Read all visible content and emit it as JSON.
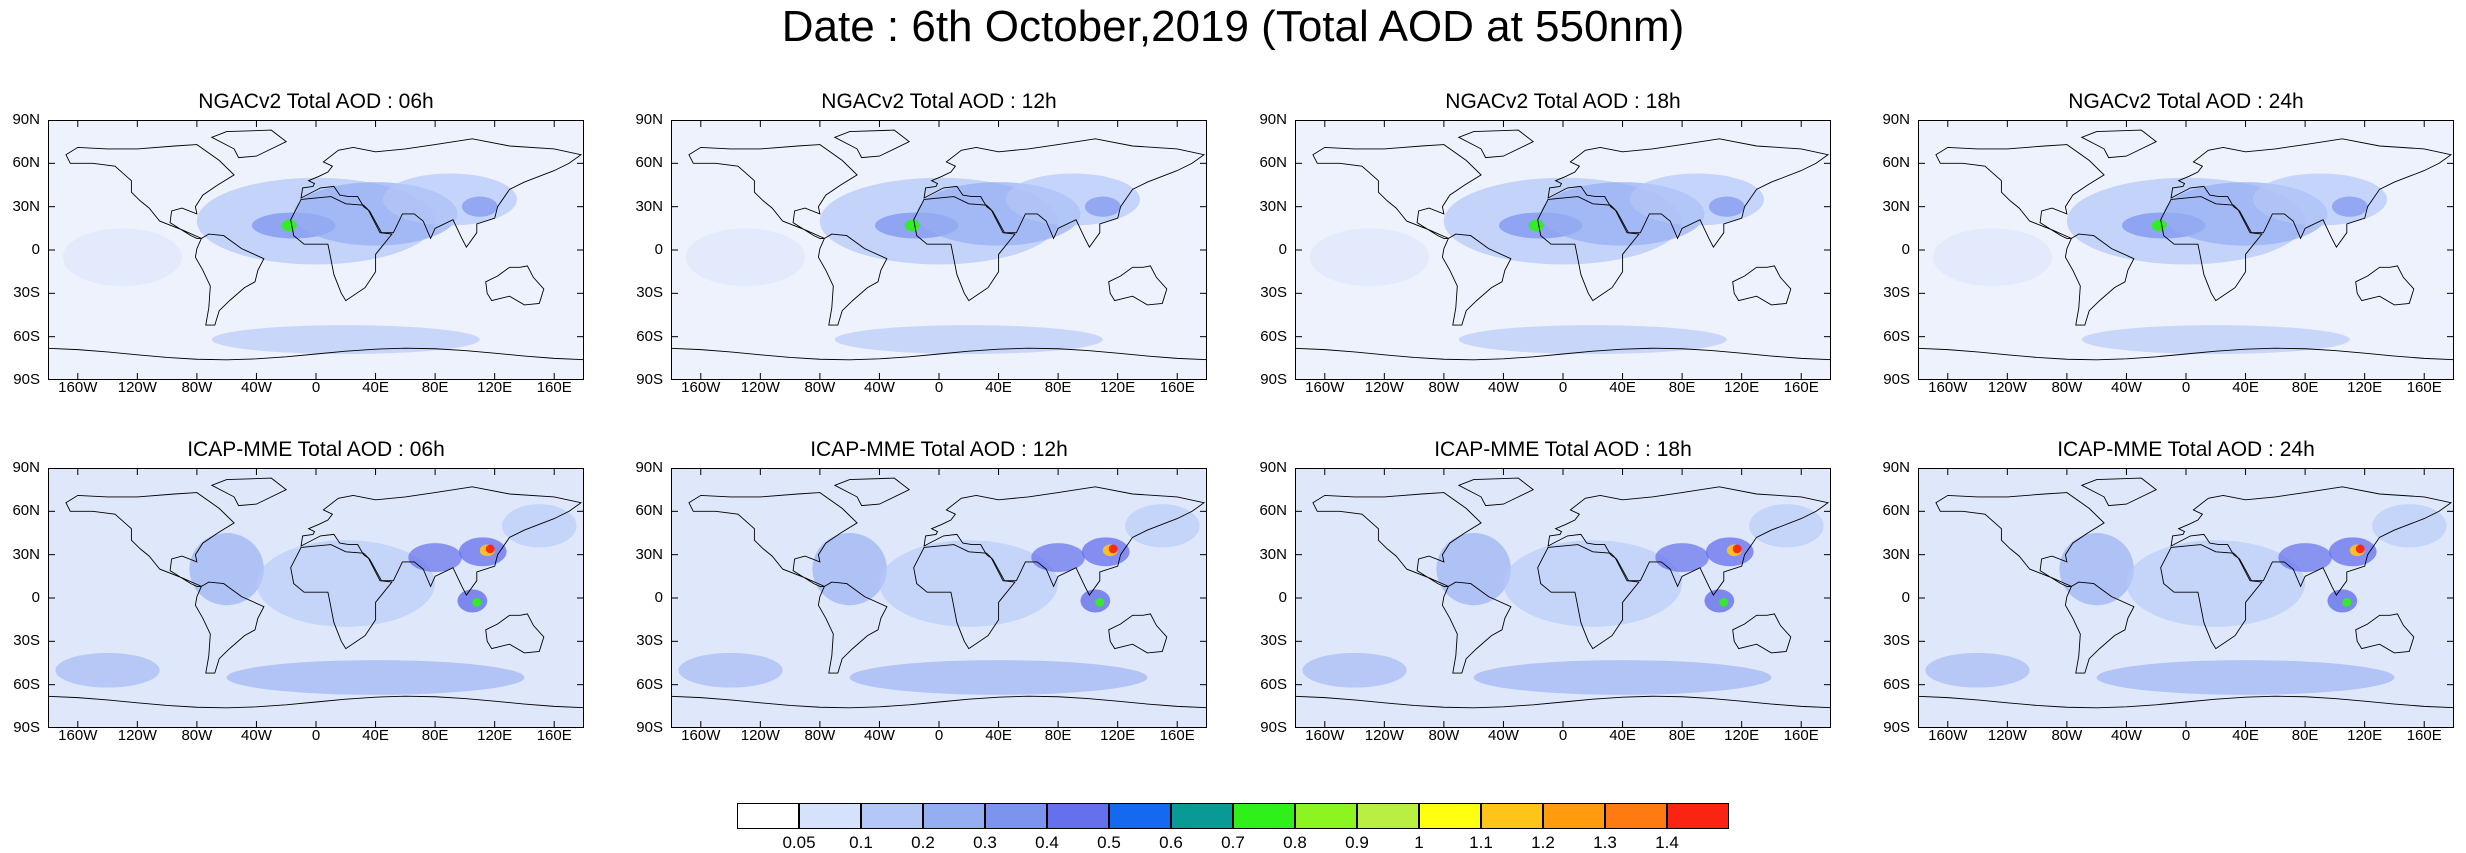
{
  "title": "Date : 6th October,2019 (Total AOD at 550nm)",
  "panels": [
    {
      "title": "NGACv2 Total AOD : 06h",
      "model": "ngac"
    },
    {
      "title": "NGACv2 Total AOD : 12h",
      "model": "ngac"
    },
    {
      "title": "NGACv2 Total AOD : 18h",
      "model": "ngac"
    },
    {
      "title": "NGACv2 Total AOD : 24h",
      "model": "ngac"
    },
    {
      "title": "ICAP-MME Total AOD : 06h",
      "model": "icap"
    },
    {
      "title": "ICAP-MME Total AOD : 12h",
      "model": "icap"
    },
    {
      "title": "ICAP-MME Total AOD : 18h",
      "model": "icap"
    },
    {
      "title": "ICAP-MME Total AOD : 24h",
      "model": "icap"
    }
  ],
  "lat_ticks": [
    "90N",
    "60N",
    "30N",
    "0",
    "30S",
    "60S",
    "90S"
  ],
  "lon_ticks": [
    "160W",
    "120W",
    "80W",
    "40W",
    "0",
    "40E",
    "80E",
    "120E",
    "160E"
  ],
  "lon_tick_values": [
    -160,
    -120,
    -80,
    -40,
    0,
    40,
    80,
    120,
    160
  ],
  "lat_tick_values": [
    90,
    60,
    30,
    0,
    -30,
    -60,
    -90
  ],
  "lon_range": [
    -180,
    180
  ],
  "lat_range": [
    -90,
    90
  ],
  "colorbar": {
    "labels": [
      "0.05",
      "0.1",
      "0.2",
      "0.3",
      "0.4",
      "0.5",
      "0.6",
      "0.7",
      "0.8",
      "0.9",
      "1",
      "1.1",
      "1.2",
      "1.3",
      "1.4"
    ],
    "colors": [
      "#ffffff",
      "#d6e2fb",
      "#b4c8f8",
      "#95aef2",
      "#7d94ef",
      "#6470ec",
      "#1569ef",
      "#0a9a96",
      "#2ff01b",
      "#8cf521",
      "#b9ef42",
      "#ffff10",
      "#ffc418",
      "#ff9b0d",
      "#ff7b11",
      "#fb2412"
    ]
  }
}
